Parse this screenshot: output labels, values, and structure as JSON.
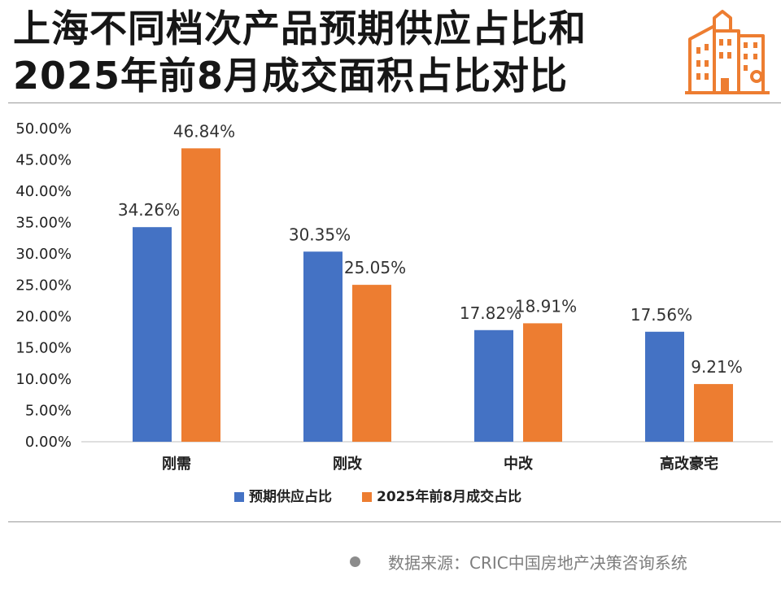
{
  "title_lines": [
    "上海不同档次产品预期供应占比和",
    "2025年前8月成交面积占比对比"
  ],
  "source": "数据来源：CRIC中国房地产决策咨询系统",
  "chart_data": {
    "type": "bar",
    "categories": [
      "刚需",
      "刚改",
      "中改",
      "高改豪宅"
    ],
    "series": [
      {
        "name": "预期供应占比",
        "values": [
          34.26,
          30.35,
          17.82,
          17.56
        ],
        "labels": [
          "34.26%",
          "30.35%",
          "17.82%",
          "17.56%"
        ],
        "color": "#4472C4"
      },
      {
        "name": "2025年前8月成交占比",
        "values": [
          46.84,
          25.05,
          18.91,
          9.21
        ],
        "labels": [
          "46.84%",
          "25.05%",
          "18.91%",
          "9.21%"
        ],
        "color": "#ED7D31"
      }
    ],
    "yticks": [
      "0.00%",
      "5.00%",
      "10.00%",
      "15.00%",
      "20.00%",
      "25.00%",
      "30.00%",
      "35.00%",
      "40.00%",
      "45.00%",
      "50.00%"
    ],
    "ylim": [
      0,
      50
    ],
    "grid": false,
    "legend": "bottom"
  }
}
